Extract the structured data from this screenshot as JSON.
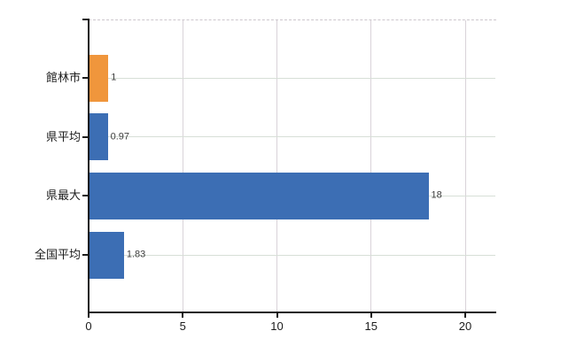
{
  "chart_data": {
    "type": "bar",
    "orientation": "horizontal",
    "title": "",
    "xlabel": "",
    "ylabel": "",
    "categories": [
      "館林市",
      "県平均",
      "県最大",
      "全国平均"
    ],
    "values": [
      1,
      0.97,
      18,
      1.83
    ],
    "value_labels": [
      "1",
      "0.97",
      "18",
      "1.83"
    ],
    "series": [
      {
        "name": "values",
        "values": [
          1,
          0.97,
          18,
          1.83
        ]
      }
    ],
    "bar_colors": [
      "#F0963C",
      "#3C6EB4",
      "#3C6EB4",
      "#3C6EB4"
    ],
    "highlight_color": "#F0963C",
    "base_color": "#3C6EB4",
    "xlim": [
      0,
      21.65
    ],
    "x_ticks": [
      0,
      5,
      10,
      15,
      20
    ],
    "x_tick_labels": [
      "0",
      "5",
      "10",
      "15",
      "20"
    ],
    "grid": true,
    "legend": false
  }
}
